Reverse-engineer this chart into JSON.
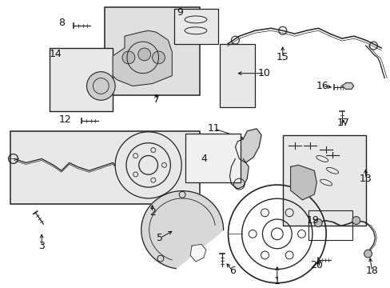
{
  "background": "#ffffff",
  "fig_w": 4.89,
  "fig_h": 3.6,
  "dpi": 100,
  "lc": "#222222",
  "lw": 0.9
}
